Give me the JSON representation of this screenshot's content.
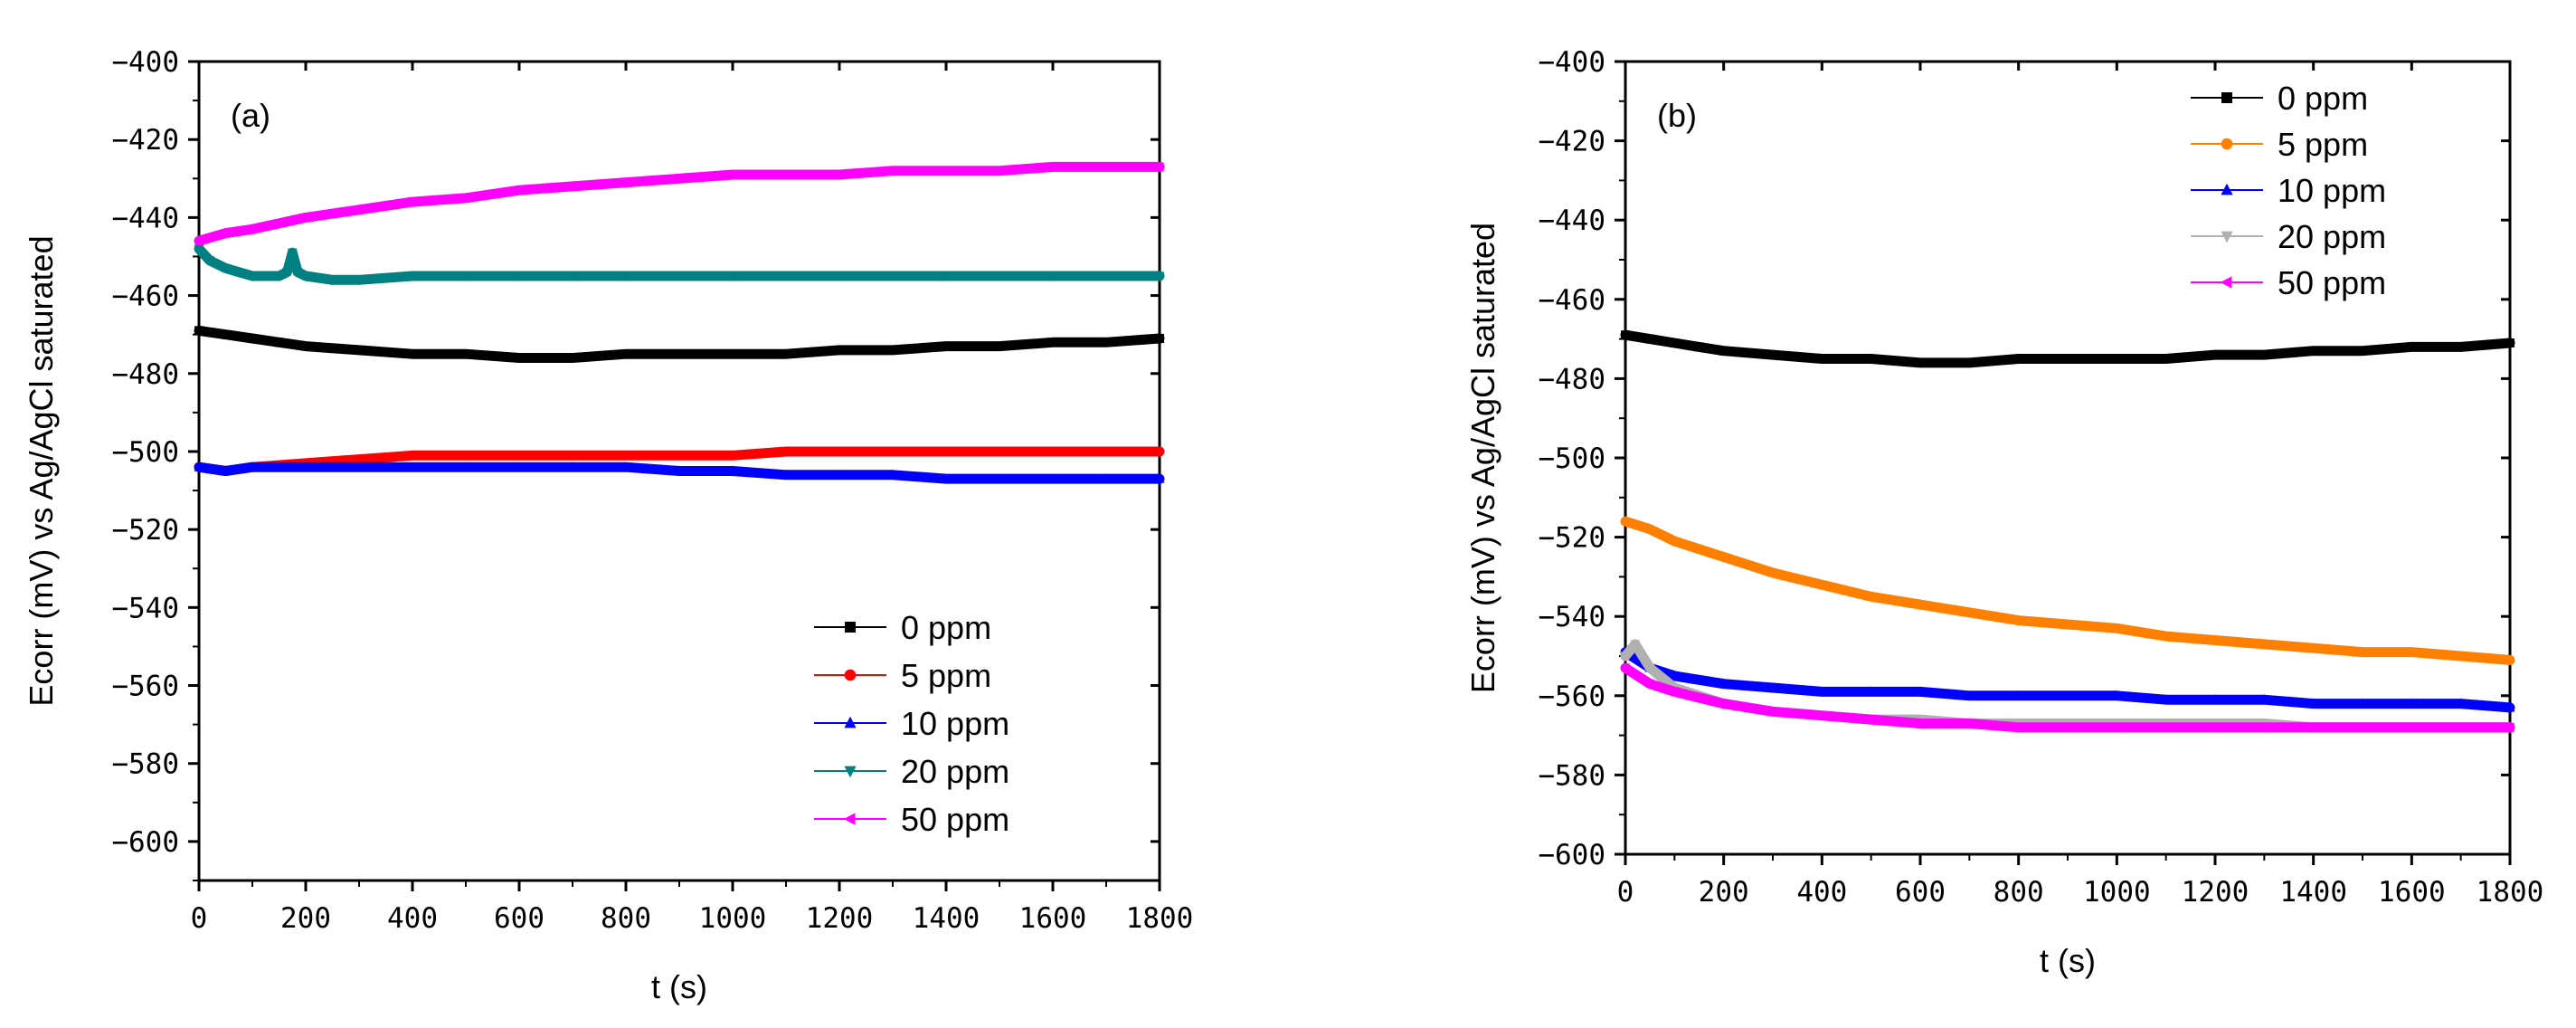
{
  "chart_data": [
    {
      "type": "line",
      "panel_label": "(a)",
      "xlabel": "t (s)",
      "ylabel": "Ecorr (mV) vs Ag/AgCl saturated",
      "xlim": [
        0,
        1800
      ],
      "ylim": [
        -610,
        -400
      ],
      "xticks": [
        0,
        200,
        400,
        600,
        800,
        1000,
        1200,
        1400,
        1600,
        1800
      ],
      "xtick_labels": [
        "0",
        "200",
        "400",
        "600",
        "800",
        "1000",
        "1200",
        "1400",
        "1600",
        "1800"
      ],
      "yticks": [
        -400,
        -420,
        -440,
        -460,
        -480,
        -500,
        -520,
        -540,
        -560,
        -580,
        -600
      ],
      "ytick_labels": [
        "−400",
        "−420",
        "−440",
        "−460",
        "−480",
        "−500",
        "−520",
        "−540",
        "−560",
        "−580",
        "−600"
      ],
      "legend_position": "lower-right",
      "series": [
        {
          "name": "0 ppm",
          "color": "#000000",
          "marker": "square",
          "x": [
            0,
            50,
            100,
            150,
            200,
            300,
            400,
            500,
            600,
            700,
            800,
            900,
            1000,
            1100,
            1200,
            1300,
            1400,
            1500,
            1600,
            1700,
            1800
          ],
          "y": [
            -469,
            -470,
            -471,
            -472,
            -473,
            -474,
            -475,
            -475,
            -476,
            -476,
            -475,
            -475,
            -475,
            -475,
            -474,
            -474,
            -473,
            -473,
            -472,
            -472,
            -471
          ]
        },
        {
          "name": "5 ppm",
          "color": "#ff0000",
          "marker": "circle",
          "x": [
            0,
            50,
            100,
            200,
            300,
            400,
            500,
            600,
            700,
            800,
            900,
            1000,
            1100,
            1200,
            1300,
            1400,
            1500,
            1600,
            1700,
            1800
          ],
          "y": [
            -504,
            -505,
            -504,
            -503,
            -502,
            -501,
            -501,
            -501,
            -501,
            -501,
            -501,
            -501,
            -500,
            -500,
            -500,
            -500,
            -500,
            -500,
            -500,
            -500
          ]
        },
        {
          "name": "10 ppm",
          "color": "#0000ff",
          "marker": "triangle-up",
          "x": [
            0,
            50,
            100,
            200,
            300,
            400,
            500,
            600,
            700,
            800,
            900,
            1000,
            1100,
            1200,
            1300,
            1400,
            1500,
            1600,
            1700,
            1800
          ],
          "y": [
            -504,
            -505,
            -504,
            -504,
            -504,
            -504,
            -504,
            -504,
            -504,
            -504,
            -505,
            -505,
            -506,
            -506,
            -506,
            -507,
            -507,
            -507,
            -507,
            -507
          ]
        },
        {
          "name": "20 ppm",
          "color": "#008080",
          "marker": "triangle-down",
          "x": [
            0,
            20,
            50,
            100,
            150,
            165,
            175,
            185,
            200,
            250,
            300,
            400,
            500,
            600,
            700,
            800,
            1000,
            1200,
            1400,
            1600,
            1800
          ],
          "y": [
            -448,
            -451,
            -453,
            -455,
            -455,
            -454,
            -449,
            -454,
            -455,
            -456,
            -456,
            -455,
            -455,
            -455,
            -455,
            -455,
            -455,
            -455,
            -455,
            -455,
            -455
          ]
        },
        {
          "name": "50 ppm",
          "color": "#ff00ff",
          "marker": "triangle-left",
          "x": [
            0,
            50,
            100,
            200,
            300,
            400,
            500,
            600,
            700,
            800,
            900,
            1000,
            1100,
            1200,
            1300,
            1400,
            1500,
            1600,
            1700,
            1800
          ],
          "y": [
            -446,
            -444,
            -443,
            -440,
            -438,
            -436,
            -435,
            -433,
            -432,
            -431,
            -430,
            -429,
            -429,
            -429,
            -428,
            -428,
            -428,
            -427,
            -427,
            -427
          ]
        }
      ]
    },
    {
      "type": "line",
      "panel_label": "(b)",
      "xlabel": "t (s)",
      "ylabel": "Ecorr (mV) vs Ag/AgCl saturated",
      "xlim": [
        0,
        1800
      ],
      "ylim": [
        -600,
        -400
      ],
      "xticks": [
        0,
        200,
        400,
        600,
        800,
        1000,
        1200,
        1400,
        1600,
        1800
      ],
      "xtick_labels": [
        "0",
        "200",
        "400",
        "600",
        "800",
        "1000",
        "1200",
        "1400",
        "1600",
        "1800"
      ],
      "yticks": [
        -400,
        -420,
        -440,
        -460,
        -480,
        -500,
        -520,
        -540,
        -560,
        -580,
        -600
      ],
      "ytick_labels": [
        "−400",
        "−420",
        "−440",
        "−460",
        "−480",
        "−500",
        "−520",
        "−540",
        "−560",
        "−580",
        "−600"
      ],
      "legend_position": "top-right",
      "series": [
        {
          "name": "0 ppm",
          "color": "#000000",
          "marker": "square",
          "x": [
            0,
            50,
            100,
            150,
            200,
            300,
            400,
            500,
            600,
            700,
            800,
            900,
            1000,
            1100,
            1200,
            1300,
            1400,
            1500,
            1600,
            1700,
            1800
          ],
          "y": [
            -469,
            -470,
            -471,
            -472,
            -473,
            -474,
            -475,
            -475,
            -476,
            -476,
            -475,
            -475,
            -475,
            -475,
            -474,
            -474,
            -473,
            -473,
            -472,
            -472,
            -471
          ]
        },
        {
          "name": "5 ppm",
          "color": "#ff8000",
          "marker": "circle",
          "x": [
            0,
            50,
            100,
            200,
            300,
            400,
            500,
            600,
            700,
            800,
            900,
            1000,
            1100,
            1200,
            1300,
            1400,
            1500,
            1600,
            1700,
            1800
          ],
          "y": [
            -516,
            -518,
            -521,
            -525,
            -529,
            -532,
            -535,
            -537,
            -539,
            -541,
            -542,
            -543,
            -545,
            -546,
            -547,
            -548,
            -549,
            -549,
            -550,
            -551
          ]
        },
        {
          "name": "10 ppm",
          "color": "#0000ff",
          "marker": "triangle-up",
          "x": [
            0,
            50,
            100,
            200,
            300,
            400,
            500,
            600,
            700,
            800,
            900,
            1000,
            1100,
            1200,
            1300,
            1400,
            1500,
            1600,
            1700,
            1800
          ],
          "y": [
            -549,
            -553,
            -555,
            -557,
            -558,
            -559,
            -559,
            -559,
            -560,
            -560,
            -560,
            -560,
            -561,
            -561,
            -561,
            -562,
            -562,
            -562,
            -562,
            -563
          ]
        },
        {
          "name": "20 ppm",
          "color": "#b0b0b0",
          "marker": "triangle-down",
          "x": [
            0,
            20,
            50,
            100,
            200,
            300,
            400,
            500,
            600,
            700,
            800,
            900,
            1000,
            1100,
            1200,
            1300,
            1400,
            1500,
            1600,
            1700,
            1800
          ],
          "y": [
            -550,
            -547,
            -553,
            -558,
            -562,
            -564,
            -565,
            -566,
            -566,
            -567,
            -567,
            -567,
            -567,
            -567,
            -567,
            -567,
            -568,
            -568,
            -568,
            -568,
            -568
          ]
        },
        {
          "name": "50 ppm",
          "color": "#ff00ff",
          "marker": "triangle-left",
          "x": [
            0,
            50,
            100,
            200,
            300,
            400,
            500,
            600,
            700,
            800,
            900,
            1000,
            1100,
            1200,
            1300,
            1400,
            1500,
            1600,
            1700,
            1800
          ],
          "y": [
            -553,
            -557,
            -559,
            -562,
            -564,
            -565,
            -566,
            -567,
            -567,
            -568,
            -568,
            -568,
            -568,
            -568,
            -568,
            -568,
            -568,
            -568,
            -568,
            -568
          ]
        }
      ]
    }
  ]
}
